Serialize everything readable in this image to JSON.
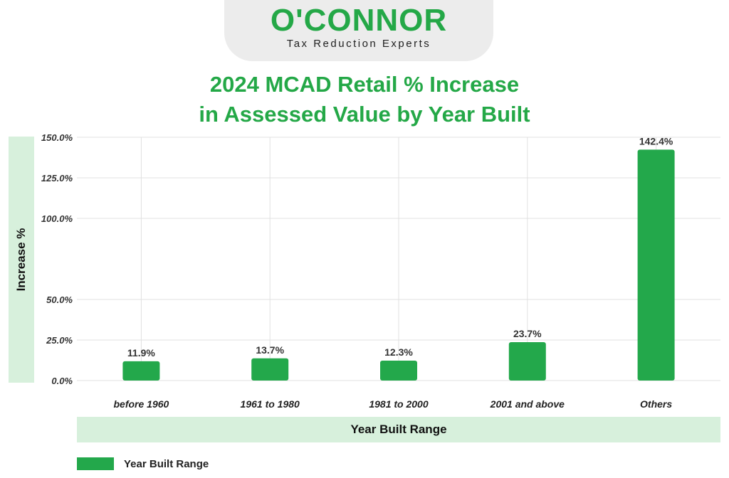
{
  "logo": {
    "wordmark": "O'CONNOR",
    "tagline": "Tax Reduction Experts"
  },
  "colors": {
    "accent": "#24a847",
    "bar": "#23a84b",
    "panel": "#d7f0dc",
    "grid": "#e0e0e0"
  },
  "chart_data": {
    "type": "bar",
    "title": "2024 MCAD Retail % Increase in Assessed Value by Year Built",
    "title_lines": [
      "2024 MCAD Retail % Increase",
      "in Assessed Value by Year Built"
    ],
    "xlabel": "Year Built Range",
    "ylabel": "Increase %",
    "categories": [
      "before 1960",
      "1961 to 1980",
      "1981 to 2000",
      "2001 and above",
      "Others"
    ],
    "series": [
      {
        "name": "Year Built Range",
        "values": [
          11.9,
          13.7,
          12.3,
          23.7,
          142.4
        ],
        "labels": [
          "11.9%",
          "13.7%",
          "12.3%",
          "23.7%",
          "142.4%"
        ]
      }
    ],
    "yticks": [
      0,
      25,
      50,
      100,
      125,
      150
    ],
    "ytick_labels": [
      "0.0%",
      "25.0%",
      "50.0%",
      "100.0%",
      "125.0%",
      "150.0%"
    ],
    "ylim": [
      0,
      150
    ],
    "grid": true,
    "legend_position": "bottom-left"
  }
}
